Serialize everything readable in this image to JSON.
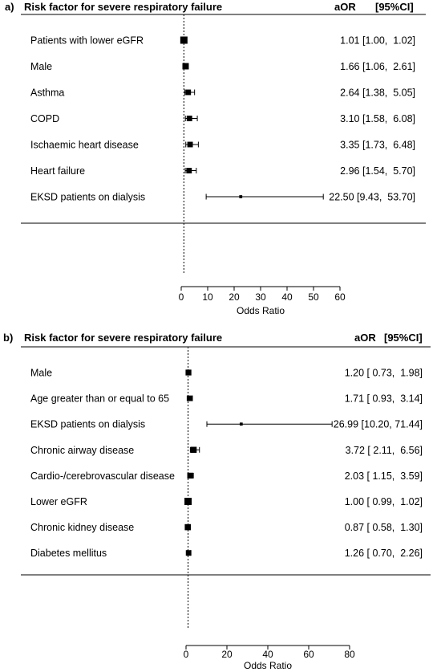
{
  "chart_data": [
    {
      "type": "forest",
      "panel": "a)",
      "header_label": "Risk factor for severe respiratory failure",
      "header_aor": "aOR",
      "header_ci": "[95%CI]",
      "xlabel": "Odds Ratio",
      "xlim": [
        0,
        60
      ],
      "ticks": [
        0,
        10,
        20,
        30,
        40,
        50,
        60
      ],
      "reference": 1,
      "rows": [
        {
          "label": "Patients with lower eGFR",
          "or": 1.01,
          "lo": 1.0,
          "hi": 1.02,
          "text": "1.01 [1.00,  1.02]",
          "w": 1.0
        },
        {
          "label": "Male",
          "or": 1.66,
          "lo": 1.06,
          "hi": 2.61,
          "text": "1.66 [1.06,  2.61]",
          "w": 0.85
        },
        {
          "label": "Asthma",
          "or": 2.64,
          "lo": 1.38,
          "hi": 5.05,
          "text": "2.64 [1.38,  5.05]",
          "w": 0.7
        },
        {
          "label": "COPD",
          "or": 3.1,
          "lo": 1.58,
          "hi": 6.08,
          "text": "3.10 [1.58,  6.08]",
          "w": 0.7
        },
        {
          "label": "Ischaemic heart disease",
          "or": 3.35,
          "lo": 1.73,
          "hi": 6.48,
          "text": "3.35 [1.73,  6.48]",
          "w": 0.7
        },
        {
          "label": "Heart failure",
          "or": 2.96,
          "lo": 1.54,
          "hi": 5.7,
          "text": "2.96 [1.54,  5.70]",
          "w": 0.7
        },
        {
          "label": "EKSD patients on dialysis",
          "or": 22.5,
          "lo": 9.43,
          "hi": 53.7,
          "text": "22.50 [9.43,  53.70]",
          "w": 0.25
        }
      ]
    },
    {
      "type": "forest",
      "panel": "b)",
      "header_label": "Risk factor for severe respiratory failure",
      "header_aor": "aOR",
      "header_ci": "[95%CI]",
      "xlabel": "Odds Ratio",
      "xlim": [
        0,
        80
      ],
      "ticks": [
        0,
        20,
        40,
        60,
        80
      ],
      "reference": 1,
      "rows": [
        {
          "label": "Male",
          "or": 1.2,
          "lo": 0.73,
          "hi": 1.98,
          "text": "1.20 [ 0.73,  1.98]",
          "w": 0.75
        },
        {
          "label": "Age greater than or equal to 65",
          "or": 1.71,
          "lo": 0.93,
          "hi": 3.14,
          "text": "1.71 [ 0.93,  3.14]",
          "w": 0.7
        },
        {
          "label": "EKSD patients on dialysis",
          "or": 26.99,
          "lo": 10.2,
          "hi": 71.44,
          "text": "26.99 [10.20, 71.44]",
          "w": 0.25
        },
        {
          "label": "Chronic airway disease",
          "or": 3.72,
          "lo": 2.11,
          "hi": 6.56,
          "text": "3.72 [ 2.11,  6.56]",
          "w": 0.8
        },
        {
          "label": "Cardio-/cerebrovascular disease",
          "or": 2.03,
          "lo": 1.15,
          "hi": 3.59,
          "text": "2.03 [ 1.15,  3.59]",
          "w": 0.75
        },
        {
          "label": "Lower eGFR",
          "or": 1.0,
          "lo": 0.99,
          "hi": 1.02,
          "text": "1.00 [ 0.99,  1.02]",
          "w": 1.0
        },
        {
          "label": "Chronic kidney disease",
          "or": 0.87,
          "lo": 0.58,
          "hi": 1.3,
          "text": "0.87 [ 0.58,  1.30]",
          "w": 0.8
        },
        {
          "label": "Diabetes mellitus",
          "or": 1.26,
          "lo": 0.7,
          "hi": 2.26,
          "text": "1.26 [ 0.70,  2.26]",
          "w": 0.7
        }
      ]
    }
  ]
}
